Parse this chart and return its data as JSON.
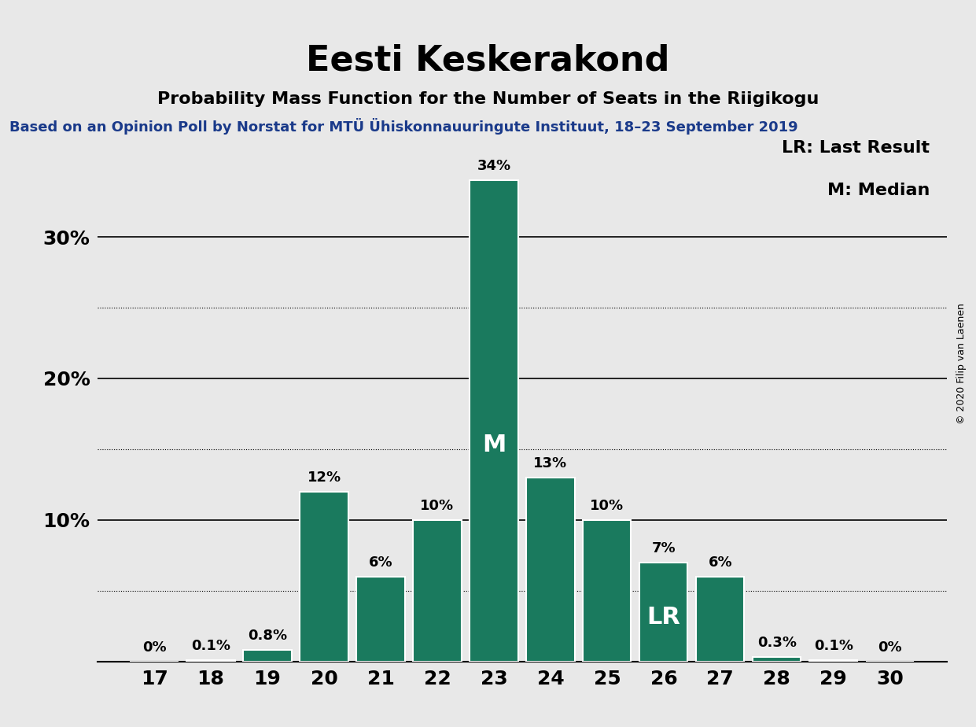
{
  "title": "Eesti Keskerakond",
  "subtitle": "Probability Mass Function for the Number of Seats in the Riigikogu",
  "source_line": "Based on an Opinion Poll by Norstat for MTÜ Ühiskonnauuringute Instituut, 18–23 September 2019",
  "copyright": "© 2020 Filip van Laenen",
  "seats": [
    17,
    18,
    19,
    20,
    21,
    22,
    23,
    24,
    25,
    26,
    27,
    28,
    29,
    30
  ],
  "probabilities": [
    0.0,
    0.1,
    0.8,
    12.0,
    6.0,
    10.0,
    34.0,
    13.0,
    10.0,
    7.0,
    6.0,
    0.3,
    0.1,
    0.0
  ],
  "labels": [
    "0%",
    "0.1%",
    "0.8%",
    "12%",
    "6%",
    "10%",
    "34%",
    "13%",
    "10%",
    "7%",
    "6%",
    "0.3%",
    "0.1%",
    "0%"
  ],
  "bar_color": "#1a7a5e",
  "background_color": "#e8e8e8",
  "median_seat": 23,
  "last_result_seat": 26,
  "legend_lr": "LR: Last Result",
  "legend_m": "M: Median",
  "ylim": [
    0,
    38
  ],
  "yticks": [
    0,
    10,
    20,
    30
  ],
  "ytick_labels": [
    "",
    "10%",
    "20%",
    "30%"
  ],
  "dotted_yticks": [
    5,
    15,
    25
  ],
  "title_fontsize": 32,
  "subtitle_fontsize": 16,
  "source_fontsize": 13,
  "bar_label_fontsize": 13,
  "axis_label_fontsize": 18,
  "legend_fontsize": 16,
  "marker_fontsize": 22
}
